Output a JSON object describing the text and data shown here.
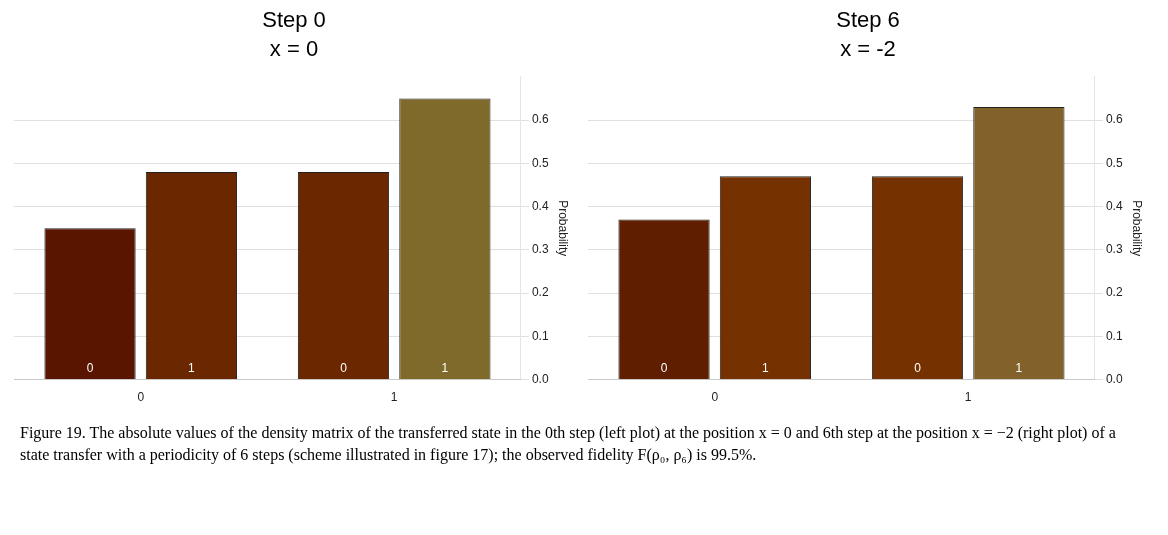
{
  "chart_data": [
    {
      "type": "bar",
      "title": "Step 0",
      "subtitle": "x = 0",
      "ylabel": "Probability",
      "categories": [
        "0",
        "1"
      ],
      "series": [
        {
          "name": "0",
          "colors": [
            "#5a1500",
            "#6b2800"
          ],
          "values": [
            0.35,
            0.48
          ]
        },
        {
          "name": "1",
          "colors": [
            "#6b2800",
            "#7f6a2b"
          ],
          "values": [
            0.48,
            0.65
          ]
        }
      ],
      "ylim": [
        0,
        0.7
      ],
      "yticks": [
        {
          "value": 0,
          "label": "0.0"
        },
        {
          "value": 0.1,
          "label": "0.1"
        },
        {
          "value": 0.2,
          "label": "0.2"
        },
        {
          "value": 0.3,
          "label": "0.3"
        },
        {
          "value": 0.4,
          "label": "0.4"
        },
        {
          "value": 0.5,
          "label": "0.5"
        },
        {
          "value": 0.6,
          "label": "0.6"
        }
      ],
      "grid": "y",
      "annotations": [
        "Figure 19. The absolute values of the density matrix of the transferred state in the 0th step (left plot) at the position x = 0 and 6th step at the position x = −2 (right plot) of a state transfer with a periodicity of 6 steps (scheme illustrated in figure 17); the observed fidelity F(ρ₀, ρ₆) is 99.5%."
      ]
    },
    {
      "type": "bar",
      "title": "Step 6",
      "subtitle": "x = -2",
      "ylabel": "Probability",
      "categories": [
        "0",
        "1"
      ],
      "series": [
        {
          "name": "0",
          "colors": [
            "#5f1e00",
            "#753200"
          ],
          "values": [
            0.37,
            0.47
          ]
        },
        {
          "name": "1",
          "colors": [
            "#753200",
            "#82622a"
          ],
          "values": [
            0.47,
            0.63
          ]
        }
      ],
      "ylim": [
        0,
        0.7
      ],
      "yticks": [
        {
          "value": 0,
          "label": "0.0"
        },
        {
          "value": 0.1,
          "label": "0.1"
        },
        {
          "value": 0.2,
          "label": "0.2"
        },
        {
          "value": 0.3,
          "label": "0.3"
        },
        {
          "value": 0.4,
          "label": "0.4"
        },
        {
          "value": 0.5,
          "label": "0.5"
        },
        {
          "value": 0.6,
          "label": "0.6"
        }
      ],
      "grid": "y"
    }
  ]
}
